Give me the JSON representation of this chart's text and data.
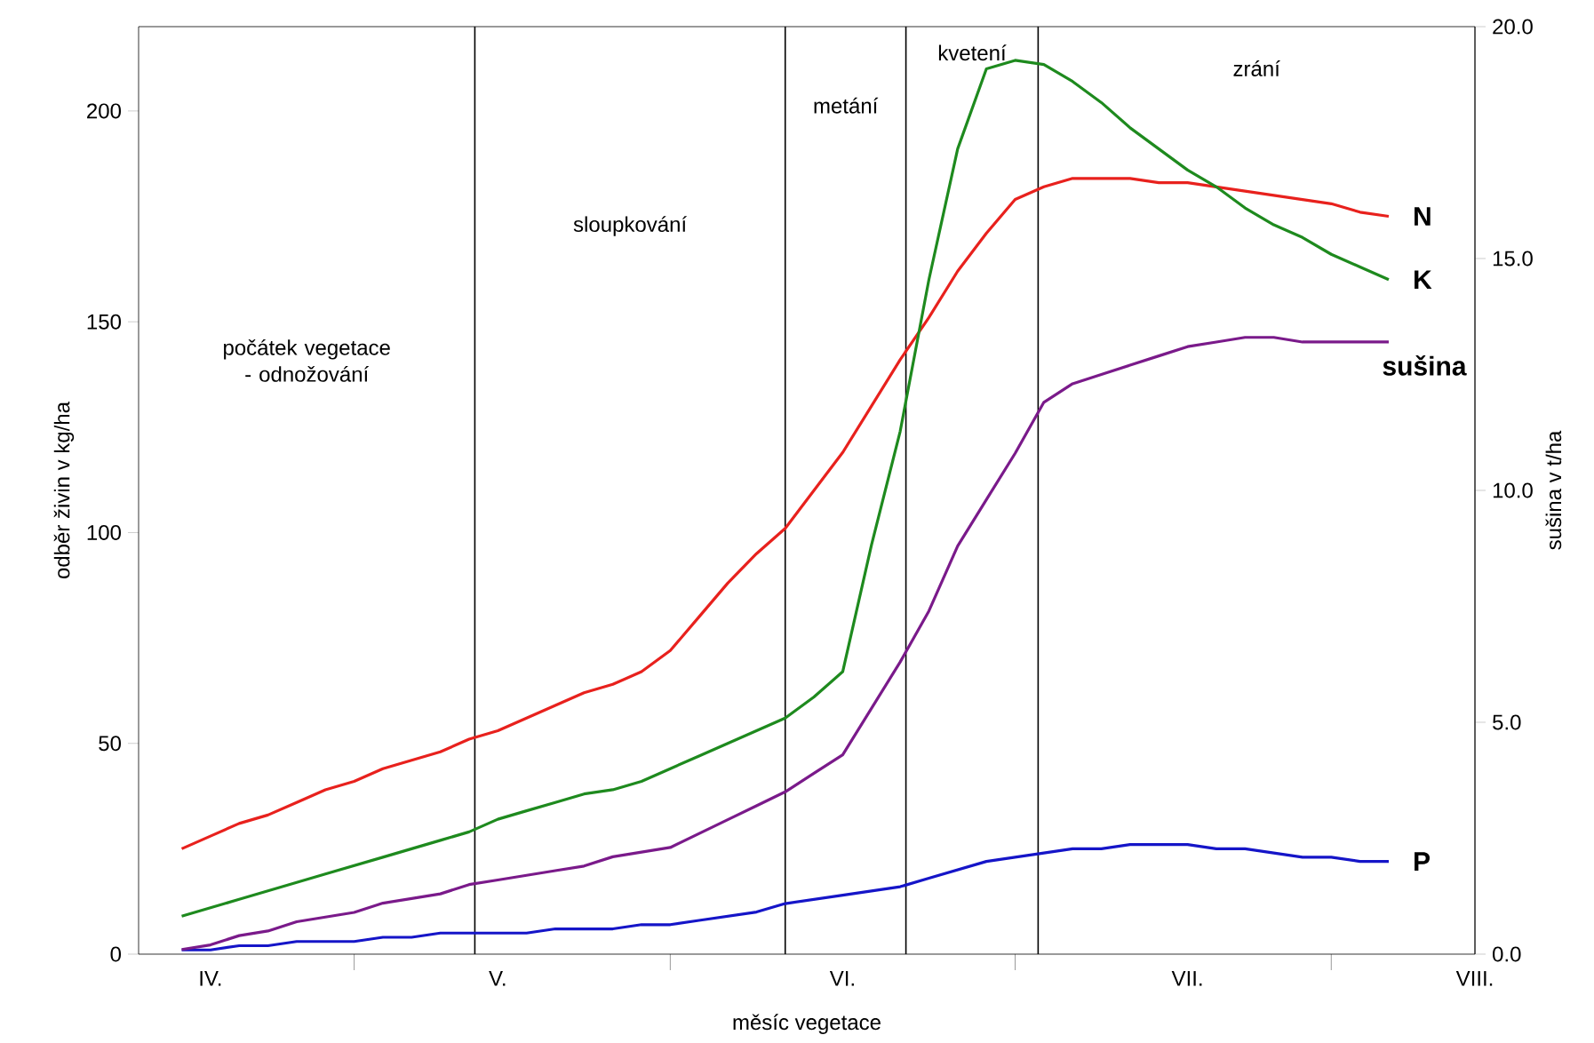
{
  "chart_data": {
    "type": "line",
    "xlabel": "měsíc vegetace",
    "ylabel": "odběr živin v kg/ha",
    "y2label": "sušina v t/ha",
    "marker": "none",
    "line_style": "solid",
    "categories": [
      null,
      "IV.",
      null,
      null,
      null,
      null,
      null,
      null,
      null,
      null,
      null,
      "V.",
      null,
      null,
      null,
      null,
      null,
      null,
      null,
      null,
      null,
      null,
      null,
      "VI.",
      null,
      null,
      null,
      null,
      null,
      null,
      null,
      null,
      null,
      null,
      null,
      "VII.",
      null,
      null,
      null,
      null,
      null,
      null,
      null,
      null,
      null,
      "VIII."
    ],
    "ylim": [
      0,
      220
    ],
    "yticks": [
      0,
      50,
      100,
      150,
      200
    ],
    "y2lim": [
      0,
      20
    ],
    "y2ticks": [
      {
        "value": 0,
        "label": "0.0"
      },
      {
        "value": 5,
        "label": "5.0"
      },
      {
        "value": 10,
        "label": "10.0"
      },
      {
        "value": 15,
        "label": "15.0"
      },
      {
        "value": 20,
        "label": "20.0"
      }
    ],
    "series": [
      {
        "name": "N",
        "color": "#e8211d",
        "values": [
          25,
          28,
          31,
          33,
          36,
          39,
          41,
          44,
          46,
          48,
          51,
          53,
          56,
          59,
          62,
          64,
          67,
          72,
          80,
          88,
          95,
          101,
          110,
          119,
          130,
          141,
          151,
          162,
          171,
          179,
          182,
          184,
          184,
          184,
          183,
          183,
          182,
          181,
          180,
          179,
          178,
          176,
          175,
          null,
          null,
          null
        ]
      },
      {
        "name": "K",
        "color": "#1e8a1e",
        "values": [
          9,
          11,
          13,
          15,
          17,
          19,
          21,
          23,
          25,
          27,
          29,
          32,
          34,
          36,
          38,
          39,
          41,
          44,
          47,
          50,
          53,
          56,
          61,
          67,
          97,
          124,
          160,
          191,
          210,
          212,
          211,
          207,
          202,
          196,
          191,
          186,
          182,
          177,
          173,
          170,
          166,
          163,
          160,
          null,
          null,
          null
        ]
      },
      {
        "name": "sušina",
        "color": "#7a1a8a",
        "axis": "y2",
        "values": [
          0.1,
          0.2,
          0.4,
          0.5,
          0.7,
          0.8,
          0.9,
          1.1,
          1.2,
          1.3,
          1.5,
          1.6,
          1.7,
          1.8,
          1.9,
          2.1,
          2.2,
          2.3,
          2.6,
          2.9,
          3.2,
          3.5,
          3.9,
          4.3,
          5.3,
          6.3,
          7.4,
          8.8,
          9.8,
          10.8,
          11.9,
          12.3,
          12.5,
          12.7,
          12.9,
          13.1,
          13.2,
          13.3,
          13.3,
          13.2,
          13.2,
          13.2,
          13.2,
          null,
          null,
          null
        ]
      },
      {
        "name": "P",
        "color": "#1515c8",
        "values": [
          1,
          1,
          2,
          2,
          3,
          3,
          3,
          4,
          4,
          5,
          5,
          5,
          5,
          6,
          6,
          6,
          7,
          7,
          8,
          9,
          10,
          12,
          13,
          14,
          15,
          16,
          18,
          20,
          22,
          23,
          24,
          25,
          25,
          26,
          26,
          26,
          25,
          25,
          24,
          23,
          23,
          22,
          22,
          null,
          null,
          null
        ]
      }
    ],
    "annotations": [
      "počátek vegetace - odnožování",
      "sloupkování",
      "metání",
      "kvetení",
      "zrání"
    ]
  }
}
